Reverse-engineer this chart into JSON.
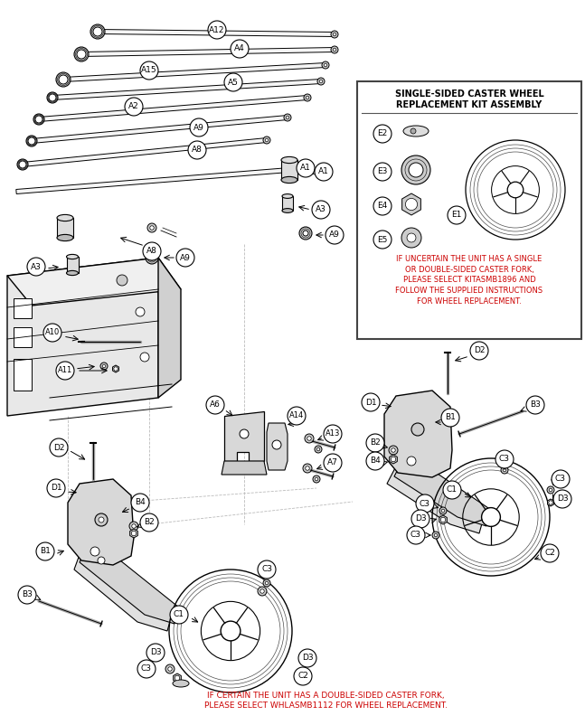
{
  "bg_color": "#ffffff",
  "line_color": "#000000",
  "red_color": "#cc0000",
  "box_title_line1": "SINGLE-SIDED CASTER WHEEL",
  "box_title_line2": "REPLACEMENT KIT ASSEMBLY",
  "box_warning": "IF UNCERTAIN THE UNIT HAS A SINGLE\nOR DOUBLE-SIDED CASTER FORK,\nPLEASE SELECT KITASMB1896 AND\nFOLLOW THE SUPPLIED INSTRUCTIONS\nFOR WHEEL REPLACEMENT.",
  "bottom_warning": "IF CERTAIN THE UNIT HAS A DOUBLE-SIDED CASTER FORK,\nPLEASE SELECT WHLASMB1112 FOR WHEEL REPLACEMENT.",
  "figsize": [
    6.47,
    8.02
  ],
  "dpi": 100
}
